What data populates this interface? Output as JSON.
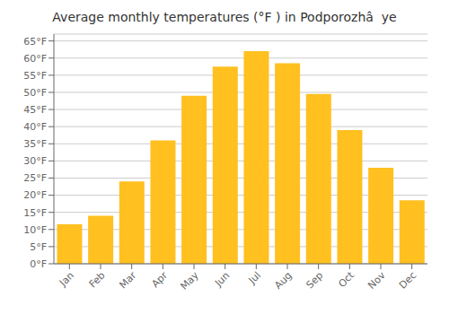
{
  "chart_data": {
    "type": "bar",
    "title": "Average monthly temperatures (°F ) in Podporozhâ  ye",
    "categories": [
      "Jan",
      "Feb",
      "Mar",
      "Apr",
      "May",
      "Jun",
      "Jul",
      "Aug",
      "Sep",
      "Oct",
      "Nov",
      "Dec"
    ],
    "values": [
      11.5,
      14.0,
      24.0,
      36.0,
      49.0,
      57.5,
      62.0,
      58.5,
      49.5,
      39.0,
      28.0,
      18.5
    ],
    "color": "#FFC020",
    "ylim": [
      0,
      67
    ],
    "yticks": [
      {
        "value": 0,
        "label": "0°F"
      },
      {
        "value": 5,
        "label": "5°F"
      },
      {
        "value": 10,
        "label": "10°F"
      },
      {
        "value": 15,
        "label": "15°F"
      },
      {
        "value": 20,
        "label": "20°F"
      },
      {
        "value": 25,
        "label": "25°F"
      },
      {
        "value": 30,
        "label": "30°F"
      },
      {
        "value": 35,
        "label": "35°F"
      },
      {
        "value": 40,
        "label": "40°F"
      },
      {
        "value": 45,
        "label": "45°F"
      },
      {
        "value": 50,
        "label": "50°F"
      },
      {
        "value": 55,
        "label": "55°F"
      },
      {
        "value": 60,
        "label": "60°F"
      },
      {
        "value": 65,
        "label": "65°F"
      }
    ],
    "grid": true
  }
}
